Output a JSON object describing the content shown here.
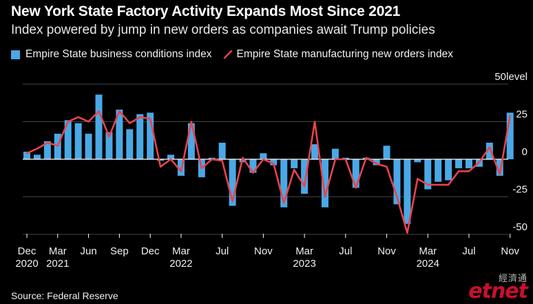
{
  "title": "New York State Factory Activity Expands Most Since 2021",
  "subtitle": "Index powered by jump in new orders as companies await Trump policies",
  "source": "Source: Federal Reserve",
  "watermark": {
    "chinese": "經濟通",
    "logo_et": "et",
    "logo_net": "net"
  },
  "colors": {
    "bar": "#4aa8e6",
    "line": "#e8434d",
    "grid": "#444444",
    "zero_line": "#ffffff",
    "background": "#000000"
  },
  "chart_data": {
    "type": "bar",
    "ylabel": "level",
    "ylim": [
      -55,
      55
    ],
    "y_ticks": [
      50,
      25,
      0,
      -25,
      -50
    ],
    "grid": true,
    "legend_placement": "top-left",
    "x_tick_labels": [
      {
        "month": "Dec",
        "year": "2020",
        "index": 0
      },
      {
        "month": "Mar",
        "year": "2021",
        "index": 3
      },
      {
        "month": "Jun",
        "year": "",
        "index": 6
      },
      {
        "month": "Sep",
        "year": "",
        "index": 9
      },
      {
        "month": "Dec",
        "year": "",
        "index": 12
      },
      {
        "month": "Mar",
        "year": "2022",
        "index": 15
      },
      {
        "month": "Jul",
        "year": "",
        "index": 19
      },
      {
        "month": "Nov",
        "year": "",
        "index": 23
      },
      {
        "month": "Mar",
        "year": "2023",
        "index": 27
      },
      {
        "month": "Jul",
        "year": "",
        "index": 31
      },
      {
        "month": "Nov",
        "year": "",
        "index": 35
      },
      {
        "month": "Mar",
        "year": "2024",
        "index": 39
      },
      {
        "month": "Jul",
        "year": "",
        "index": 43
      },
      {
        "month": "Nov",
        "year": "",
        "index": 47
      }
    ],
    "series": [
      {
        "name": "Empire State business conditions index",
        "type": "bar",
        "values": [
          5,
          3,
          12,
          17,
          26,
          24,
          17,
          43,
          18,
          33,
          20,
          30,
          31,
          -1,
          3,
          -11,
          24,
          -12,
          1,
          11,
          -31,
          -2,
          -9,
          4,
          -4,
          -32,
          -6,
          -23,
          10,
          -32,
          7,
          1,
          -19,
          1,
          -4,
          9,
          -30,
          -43,
          -2,
          -20,
          -15,
          -14,
          -6,
          -6,
          -5,
          11,
          -11,
          31
        ],
        "color": "#4aa8e6"
      },
      {
        "name": "Empire State manufacturing new orders index",
        "type": "line",
        "values": [
          4,
          7,
          11,
          9,
          25,
          28,
          25,
          32,
          15,
          32,
          24,
          28,
          27,
          -5,
          0,
          -8,
          25,
          -6,
          0,
          -1,
          -28,
          1,
          -9,
          0,
          -3,
          -29,
          -7,
          -18,
          25,
          -25,
          0,
          0,
          -19,
          1,
          -3,
          -5,
          -25,
          -49,
          -13,
          -17,
          -17,
          -17,
          -8,
          -8,
          -2,
          8,
          -10,
          29
        ],
        "color": "#e8434d"
      }
    ]
  }
}
